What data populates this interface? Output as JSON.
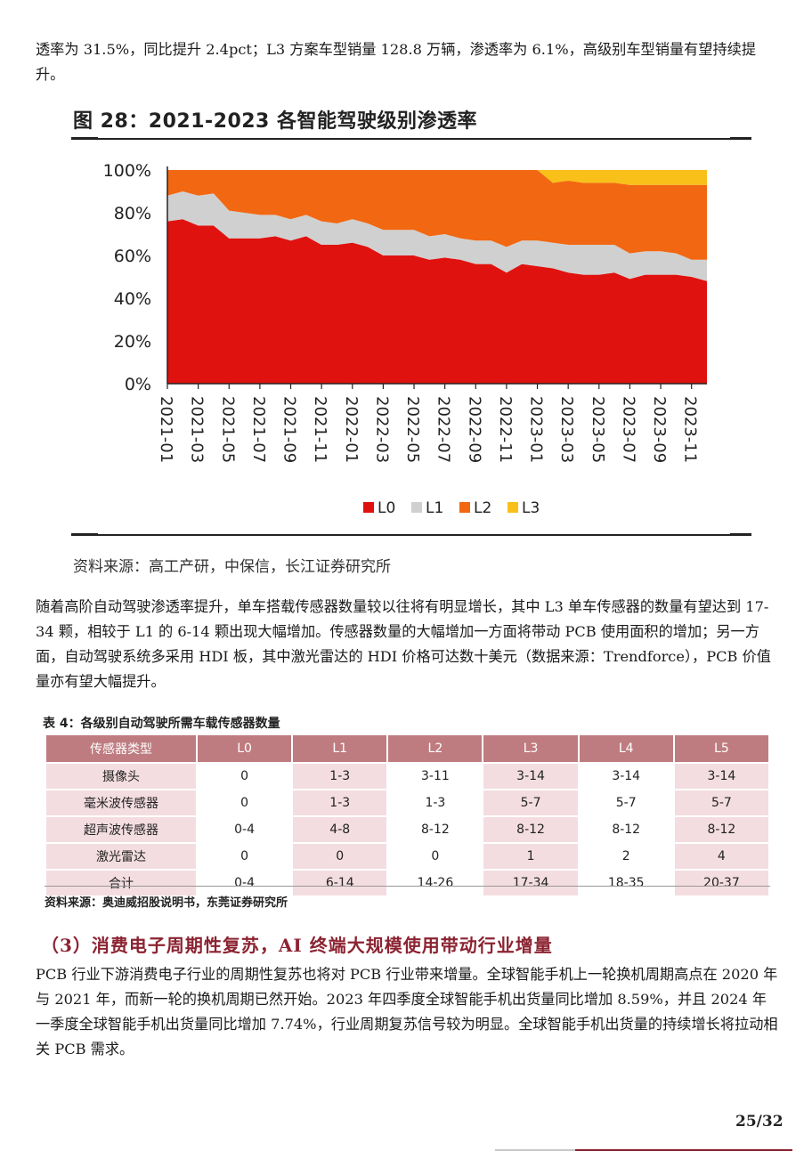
{
  "paragraphs": {
    "top": "透率为 31.5%，同比提升 2.4pct；L3 方案车型销量 128.8 万辆，渗透率为 6.1%，高级别车型销量有望持续提升。",
    "middle": "随着高阶自动驾驶渗透率提升，单车搭载传感器数量较以往将有明显增长，其中 L3 单车传感器的数量有望达到 17-34 颗，相较于 L1 的 6-14 颗出现大幅增加。传感器数量的大幅增加一方面将带动 PCB 使用面积的增加；另一方面，自动驾驶系统多采用 HDI 板，其中激光雷达的 HDI 价格可达数十美元（数据来源：Trendforce），PCB 价值量亦有望大幅提升。",
    "bottom": "PCB 行业下游消费电子行业的周期性复苏也将对 PCB 行业带来增量。全球智能手机上一轮换机周期高点在 2020 年与 2021 年，而新一轮的换机周期已然开始。2023 年四季度全球智能手机出货量同比增加 8.59%，并且 2024 年一季度全球智能手机出货量同比增加 7.74%，行业周期复苏信号较为明显。全球智能手机出货量的持续增长将拉动相关 PCB 需求。"
  },
  "figure": {
    "title": "图 28：2021-2023 各智能驾驶级别渗透率",
    "source": "资料来源：高工产研，中保信，长江证券研究所"
  },
  "chart_data": {
    "type": "area",
    "stacked": true,
    "x": [
      "2021-01",
      "2021-02",
      "2021-03",
      "2021-04",
      "2021-05",
      "2021-06",
      "2021-07",
      "2021-08",
      "2021-09",
      "2021-10",
      "2021-11",
      "2021-12",
      "2022-01",
      "2022-02",
      "2022-03",
      "2022-04",
      "2022-05",
      "2022-06",
      "2022-07",
      "2022-08",
      "2022-09",
      "2022-10",
      "2022-11",
      "2022-12",
      "2023-01",
      "2023-02",
      "2023-03",
      "2023-04",
      "2023-05",
      "2023-06",
      "2023-07",
      "2023-08",
      "2023-09",
      "2023-10",
      "2023-11",
      "2023-12"
    ],
    "x_tick_labels": [
      "2021-01",
      "2021-03",
      "2021-05",
      "2021-07",
      "2021-09",
      "2021-11",
      "2022-01",
      "2022-03",
      "2022-05",
      "2022-07",
      "2022-09",
      "2022-11",
      "2023-01",
      "2023-03",
      "2023-05",
      "2023-07",
      "2023-09",
      "2023-11"
    ],
    "series": [
      {
        "name": "L0",
        "color": "#e0120f",
        "values": [
          76,
          77,
          74,
          74,
          68,
          68,
          68,
          69,
          67,
          69,
          65,
          65,
          66,
          64,
          60,
          60,
          60,
          58,
          59,
          58,
          56,
          56,
          52,
          56,
          55,
          54,
          52,
          51,
          51,
          52,
          49,
          51,
          51,
          51,
          50,
          48
        ]
      },
      {
        "name": "L1",
        "color": "#d0d0d0",
        "values": [
          12,
          13,
          14,
          15,
          13,
          12,
          11,
          10,
          10,
          10,
          11,
          10,
          11,
          11,
          12,
          12,
          12,
          11,
          11,
          10,
          11,
          11,
          12,
          11,
          12,
          12,
          13,
          14,
          14,
          13,
          12,
          11,
          11,
          10,
          8,
          10
        ]
      },
      {
        "name": "L2",
        "color": "#f26711",
        "values": [
          12,
          10,
          12,
          11,
          19,
          20,
          21,
          21,
          23,
          21,
          24,
          25,
          23,
          25,
          28,
          28,
          28,
          31,
          30,
          32,
          33,
          33,
          36,
          33,
          33,
          28,
          30,
          29,
          29,
          29,
          32,
          31,
          31,
          32,
          35,
          35
        ]
      },
      {
        "name": "L3",
        "color": "#f8c018",
        "values": [
          0,
          0,
          0,
          0,
          0,
          0,
          0,
          0,
          0,
          0,
          0,
          0,
          0,
          0,
          0,
          0,
          0,
          0,
          0,
          0,
          0,
          0,
          0,
          0,
          0,
          6,
          5,
          6,
          6,
          6,
          7,
          7,
          7,
          7,
          7,
          7
        ]
      }
    ],
    "ylim": [
      0,
      100
    ],
    "y_ticks": [
      "100%",
      "80%",
      "60%",
      "40%",
      "20%",
      "0%"
    ],
    "legend": [
      "L0",
      "L1",
      "L2",
      "L3"
    ],
    "legend_position": "bottom"
  },
  "table": {
    "title": "表 4：各级别自动驾驶所需车载传感器数量",
    "headers": [
      "传感器类型",
      "L0",
      "L1",
      "L2",
      "L3",
      "L4",
      "L5"
    ],
    "rows": [
      [
        "摄像头",
        "0",
        "1-3",
        "3-11",
        "3-14",
        "3-14",
        "3-14"
      ],
      [
        "毫米波传感器",
        "0",
        "1-3",
        "1-3",
        "5-7",
        "5-7",
        "5-7"
      ],
      [
        "超声波传感器",
        "0-4",
        "4-8",
        "8-12",
        "8-12",
        "8-12",
        "8-12"
      ],
      [
        "激光雷达",
        "0",
        "0",
        "0",
        "1",
        "2",
        "4"
      ],
      [
        "合计",
        "0-4",
        "6-14",
        "14-26",
        "17-34",
        "18-35",
        "20-37"
      ]
    ],
    "source": "资料来源：奥迪威招股说明书，东莞证券研究所"
  },
  "section_heading": "（3）消费电子周期性复苏，AI 终端大规模使用带动行业增量",
  "page_number": "25/32",
  "colors": {
    "table_header": "#bf7c80",
    "table_stripe": "#f3dde1",
    "section_heading": "#8b2331"
  }
}
